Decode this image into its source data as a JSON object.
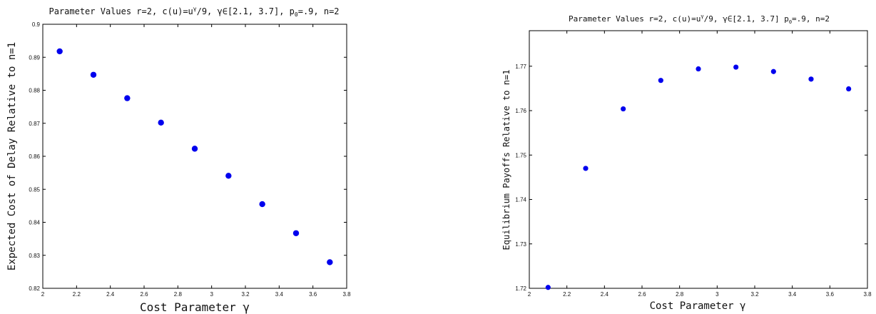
{
  "chart_data": [
    {
      "type": "scatter",
      "title_main": "Parameter Values r=2, c(u)=u",
      "title_sup": "γ",
      "title_rest": "/9, γ∈[2.1, 3.7], p",
      "title_sub": "0",
      "title_end": "=.9, n=2",
      "xlabel": "Cost Parameter γ",
      "ylabel": "Expected Cost of Delay Relative to n=1",
      "xlim": [
        2,
        3.8
      ],
      "ylim": [
        0.82,
        0.9
      ],
      "xticks": [
        "2",
        "2.2",
        "2.4",
        "2.6",
        "2.8",
        "3",
        "3.2",
        "3.4",
        "3.6",
        "3.8"
      ],
      "yticks": [
        "0.82",
        "0.83",
        "0.84",
        "0.85",
        "0.86",
        "0.87",
        "0.88",
        "0.89",
        "0.9"
      ],
      "x": [
        2.1,
        2.3,
        2.5,
        2.7,
        2.9,
        3.1,
        3.3,
        3.5,
        3.7
      ],
      "y": [
        0.8918,
        0.8847,
        0.8776,
        0.8702,
        0.8623,
        0.8541,
        0.8455,
        0.8367,
        0.8279
      ],
      "grid": false,
      "color": "#0000ee"
    },
    {
      "type": "scatter",
      "title_main": "Parameter Values r=2, c(u)=u",
      "title_sup": "γ",
      "title_rest": "/9, γ∈[2.1, 3.7] p",
      "title_sub": "0",
      "title_end": "=.9, n=2",
      "xlabel": "Cost Parameter γ",
      "ylabel": "Equilibrium Payoffs Relative to n=1",
      "xlim": [
        2,
        3.8
      ],
      "ylim": [
        1.72,
        1.778
      ],
      "xticks": [
        "2",
        "2.2",
        "2.4",
        "2.6",
        "2.8",
        "3",
        "3.2",
        "3.4",
        "3.6",
        "3.8"
      ],
      "yticks": [
        "1.72",
        "1.73",
        "1.74",
        "1.75",
        "1.76",
        "1.77"
      ],
      "x": [
        2.1,
        2.3,
        2.5,
        2.7,
        2.9,
        3.1,
        3.3,
        3.5,
        3.7
      ],
      "y": [
        1.7202,
        1.747,
        1.7604,
        1.7668,
        1.7694,
        1.7698,
        1.7688,
        1.7671,
        1.7649
      ],
      "grid": false,
      "color": "#0000ee"
    }
  ]
}
